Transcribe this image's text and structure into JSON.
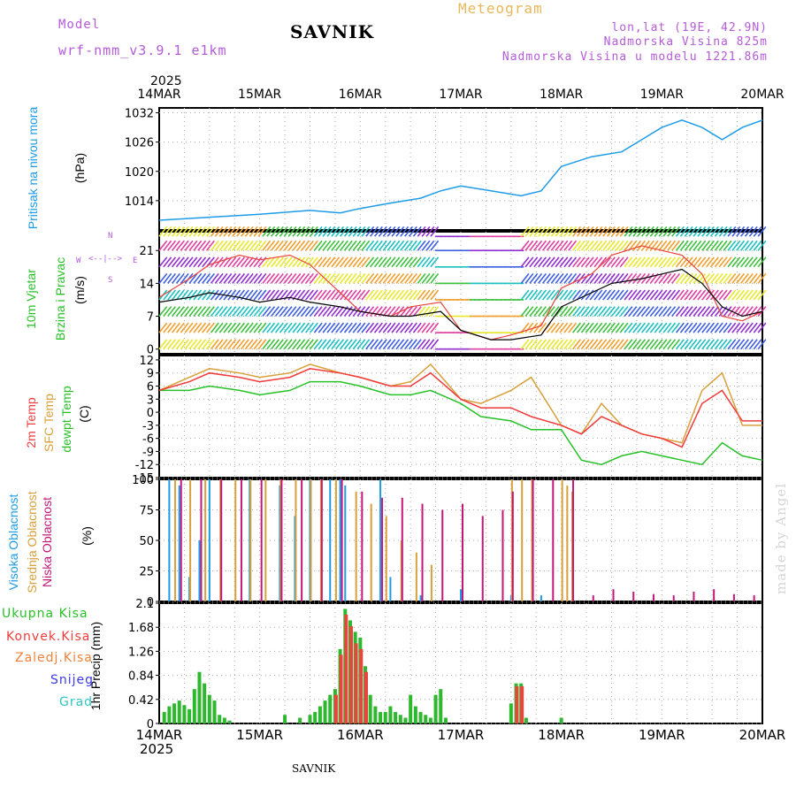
{
  "header": {
    "model_label": "Model",
    "model_name": "wrf-nmm_v3.9.1 e1km",
    "station": "SAVNIK",
    "product": "Meteogram",
    "coords": "lon,lat (19E, 42.9N)",
    "elevation": "Nadmorska Visina 825m",
    "model_elevation": "Nadmorska Visina u modelu 1221.86m",
    "footer_station": "SAVNIK",
    "watermark": "made by Angel"
  },
  "colors": {
    "pressure": "#1e9be6",
    "wind_speed": "#000000",
    "gust": "#e8453c",
    "t2m": "#ef3b3b",
    "sfc": "#d8a03a",
    "dewpt": "#27c127",
    "cloud_high": "#1e9be6",
    "cloud_mid": "#d8a03a",
    "cloud_low": "#c2187a",
    "precip_total": "#2eb82e",
    "precip_conv": "#e8453c",
    "precip_zal": "#f0823a",
    "precip_snow": "#3a3ae8",
    "precip_grad": "#2ec4c4"
  },
  "axes": {
    "year": "2025",
    "dates": [
      "14MAR",
      "15MAR",
      "16MAR",
      "17MAR",
      "18MAR",
      "19MAR",
      "20MAR"
    ],
    "compass": [
      "N",
      "E",
      "S",
      "W"
    ]
  },
  "panels": {
    "pressure": {
      "label": "Pritisak na nivou mora",
      "unit": "(hPa)"
    },
    "wind": {
      "label1": "10m Vjetar",
      "label2": "Brzina i Pravac",
      "unit": "(m/s)"
    },
    "temp": {
      "label1": "2m Temp",
      "label2": "SFC Temp",
      "label3": "dewpt Temp",
      "unit": "(C)"
    },
    "cloud": {
      "label1": "Visoka Oblacnost",
      "label2": "Srednja Oblacnost",
      "label3": "Niska Oblacnost",
      "unit": "(%)"
    },
    "precip": {
      "labels": [
        "Ukupna Kisa",
        "Konvek.Kisa",
        "Zaledj.Kisa",
        "Snijeg",
        "Grad"
      ],
      "unit": "1hr Precip (mm)"
    }
  },
  "chart_data": [
    {
      "type": "line",
      "name": "pressure",
      "xlabel": "",
      "ylabel": "(hPa)",
      "ylim": [
        1008,
        1033
      ],
      "yticks": [
        1014,
        1020,
        1026,
        1032
      ],
      "x_days": [
        0,
        0.5,
        1,
        1.5,
        1.8,
        2,
        2.3,
        2.6,
        2.8,
        3,
        3.3,
        3.6,
        3.8,
        4,
        4.3,
        4.6,
        4.8,
        5,
        5.2,
        5.4,
        5.6,
        5.8,
        6
      ],
      "series": [
        {
          "values": [
            1010,
            1010.6,
            1011.2,
            1012,
            1011.5,
            1012.4,
            1013.5,
            1014.5,
            1016,
            1017,
            1016,
            1015,
            1016,
            1021,
            1023,
            1024,
            1026.5,
            1029,
            1030.5,
            1029,
            1026.5,
            1029,
            1030.5
          ]
        }
      ]
    },
    {
      "type": "line",
      "name": "wind",
      "xlabel": "",
      "ylabel": "(m/s)",
      "ylim": [
        -1,
        25
      ],
      "yticks": [
        0,
        7,
        14,
        21
      ],
      "x_days": [
        0,
        0.3,
        0.5,
        0.8,
        1,
        1.3,
        1.5,
        1.8,
        2,
        2.3,
        2.5,
        2.8,
        3,
        3.3,
        3.5,
        3.8,
        4,
        4.3,
        4.5,
        4.8,
        5,
        5.2,
        5.4,
        5.6,
        5.8,
        6
      ],
      "series": [
        {
          "values": [
            10,
            11,
            12,
            11,
            10,
            11,
            10,
            9,
            8,
            7,
            7,
            8,
            4,
            2,
            2,
            3,
            9,
            12,
            14,
            15,
            16,
            17,
            14,
            9,
            7,
            8
          ]
        },
        {
          "values": [
            11,
            15,
            18,
            20,
            19,
            20,
            18,
            12,
            8,
            7,
            9,
            10,
            4,
            2,
            3,
            5,
            13,
            16,
            20,
            22,
            21,
            20,
            16,
            7,
            6,
            8
          ]
        }
      ]
    },
    {
      "type": "line",
      "name": "temperature",
      "xlabel": "",
      "ylabel": "(C)",
      "ylim": [
        -15,
        13
      ],
      "yticks": [
        12,
        9,
        6,
        3,
        0,
        -3,
        -6,
        -9,
        -12,
        -15
      ],
      "x_days": [
        0,
        0.3,
        0.5,
        0.8,
        1,
        1.3,
        1.5,
        1.8,
        2,
        2.3,
        2.5,
        2.7,
        3,
        3.2,
        3.5,
        3.7,
        4,
        4.2,
        4.4,
        4.6,
        4.8,
        5,
        5.2,
        5.4,
        5.6,
        5.8,
        6
      ],
      "series": [
        {
          "values": [
            5,
            7,
            9,
            8,
            7,
            8,
            10,
            9,
            8,
            6,
            6,
            9,
            3,
            1,
            1,
            -1,
            -3,
            -5,
            -1,
            -3,
            -5,
            -6,
            -8,
            2,
            5,
            -2,
            -2
          ]
        },
        {
          "values": [
            5,
            8,
            10,
            9,
            8,
            9,
            11,
            9,
            8,
            6,
            7,
            11,
            3,
            2,
            5,
            8,
            -3,
            -5,
            2,
            -3,
            -5,
            -6,
            -7,
            5,
            9,
            -3,
            -3
          ]
        },
        {
          "values": [
            5,
            5,
            6,
            5,
            4,
            5,
            7,
            7,
            6,
            4,
            4,
            5,
            2,
            -1,
            -2,
            -4,
            -4,
            -11,
            -12,
            -10,
            -9,
            -10,
            -11,
            -12,
            -7,
            -10,
            -11
          ]
        }
      ]
    },
    {
      "type": "bar",
      "name": "cloud_cover",
      "xlabel": "",
      "ylabel": "(%)",
      "ylim": [
        0,
        100
      ],
      "yticks": [
        0,
        25,
        50,
        75,
        100
      ],
      "series": [
        {
          "name": "Visoka Oblacnost",
          "x_days": [
            0.1,
            0.2,
            0.3,
            0.4,
            0.5,
            0.9,
            1.2,
            1.35,
            1.5,
            1.7,
            1.8,
            1.85,
            2.2,
            2.3,
            2.6,
            3.0,
            3.5,
            3.8
          ],
          "values": [
            100,
            95,
            20,
            50,
            100,
            100,
            95,
            70,
            100,
            100,
            100,
            95,
            100,
            20,
            5,
            10,
            5,
            5
          ]
        },
        {
          "name": "Srednja Oblacnost",
          "x_days": [
            0.15,
            0.3,
            0.45,
            0.6,
            0.75,
            0.9,
            1.05,
            1.2,
            1.35,
            1.5,
            1.6,
            1.75,
            1.95,
            2.1,
            2.25,
            2.4,
            2.55,
            2.7,
            3.5,
            3.6,
            3.7,
            4.0,
            4.05,
            4.1
          ],
          "values": [
            100,
            100,
            100,
            100,
            100,
            100,
            100,
            100,
            100,
            100,
            100,
            100,
            90,
            80,
            70,
            50,
            40,
            30,
            100,
            100,
            100,
            100,
            95,
            90
          ]
        },
        {
          "name": "Niska Oblacnost",
          "x_days": [
            0.2,
            0.4,
            0.6,
            0.8,
            1.0,
            1.2,
            1.4,
            1.6,
            1.8,
            2.0,
            2.2,
            2.4,
            2.6,
            2.8,
            3.0,
            3.2,
            3.4,
            3.5,
            3.7,
            3.9,
            4.1,
            4.3,
            4.5,
            4.7,
            4.9,
            5.1,
            5.3,
            5.5,
            5.7,
            5.9
          ],
          "values": [
            100,
            100,
            100,
            100,
            100,
            100,
            100,
            100,
            100,
            90,
            85,
            85,
            80,
            75,
            80,
            70,
            75,
            90,
            100,
            100,
            100,
            5,
            10,
            8,
            6,
            5,
            8,
            10,
            6,
            5
          ]
        }
      ]
    },
    {
      "type": "bar",
      "name": "precipitation",
      "xlabel": "",
      "ylabel": "1hr Precip (mm)",
      "ylim": [
        0,
        2.1
      ],
      "yticks": [
        0,
        0.42,
        0.84,
        1.26,
        1.68,
        2.1
      ],
      "series": [
        {
          "name": "Ukupna Kisa",
          "x_days": [
            0.05,
            0.1,
            0.15,
            0.2,
            0.25,
            0.3,
            0.35,
            0.4,
            0.45,
            0.5,
            0.55,
            0.6,
            0.65,
            0.7,
            1.25,
            1.4,
            1.5,
            1.55,
            1.6,
            1.65,
            1.7,
            1.75,
            1.8,
            1.85,
            1.9,
            1.95,
            2.0,
            2.05,
            2.1,
            2.15,
            2.2,
            2.25,
            2.3,
            2.35,
            2.4,
            2.45,
            2.5,
            2.55,
            2.6,
            2.65,
            2.7,
            2.75,
            2.8,
            2.85,
            3.5,
            3.55,
            3.6,
            3.65,
            4.0
          ],
          "values": [
            0.2,
            0.3,
            0.35,
            0.4,
            0.32,
            0.25,
            0.6,
            0.9,
            0.7,
            0.5,
            0.4,
            0.15,
            0.1,
            0.05,
            0.15,
            0.1,
            0.15,
            0.2,
            0.3,
            0.4,
            0.5,
            0.6,
            1.3,
            2.0,
            1.8,
            1.6,
            1.5,
            1.0,
            0.5,
            0.3,
            0.2,
            0.2,
            0.3,
            0.2,
            0.15,
            0.1,
            0.5,
            0.3,
            0.2,
            0.15,
            0.1,
            0.5,
            0.6,
            0.1,
            0.35,
            0.7,
            0.7,
            0.1,
            0.1
          ]
        },
        {
          "name": "Konvek.Kisa",
          "x_days": [
            1.75,
            1.8,
            1.85,
            1.9,
            1.95,
            2.0,
            2.05,
            3.55,
            3.6
          ],
          "values": [
            0.5,
            1.2,
            1.9,
            1.7,
            1.4,
            1.3,
            0.9,
            0.65,
            0.65
          ]
        }
      ]
    }
  ]
}
